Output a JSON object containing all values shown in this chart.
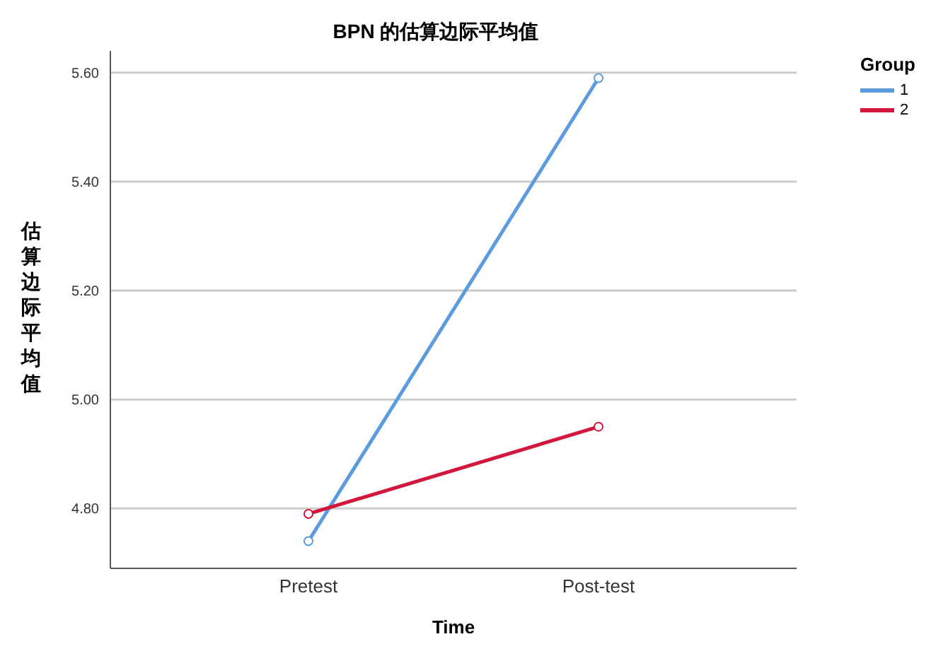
{
  "chart_data": {
    "type": "line",
    "title": "BPN 的估算边际平均值",
    "xlabel": "Time",
    "ylabel": "估算边际平均值",
    "legend_title": "Group",
    "categories": [
      "Pretest",
      "Post-test"
    ],
    "series": [
      {
        "name": "1",
        "color": "#5b9bde",
        "values": [
          4.74,
          5.59
        ]
      },
      {
        "name": "2",
        "color": "#d2163c",
        "values": [
          4.79,
          4.95
        ]
      }
    ],
    "ylim": [
      4.69,
      5.64
    ],
    "yticks": [
      {
        "value": 4.8,
        "label": "4.80"
      },
      {
        "value": 5.0,
        "label": "5.00"
      },
      {
        "value": 5.2,
        "label": "5.20"
      },
      {
        "value": 5.4,
        "label": "5.40"
      },
      {
        "value": 5.6,
        "label": "5.60"
      }
    ],
    "grid": "y",
    "legend": "top right",
    "marker": "circle",
    "line_style": "solid"
  }
}
